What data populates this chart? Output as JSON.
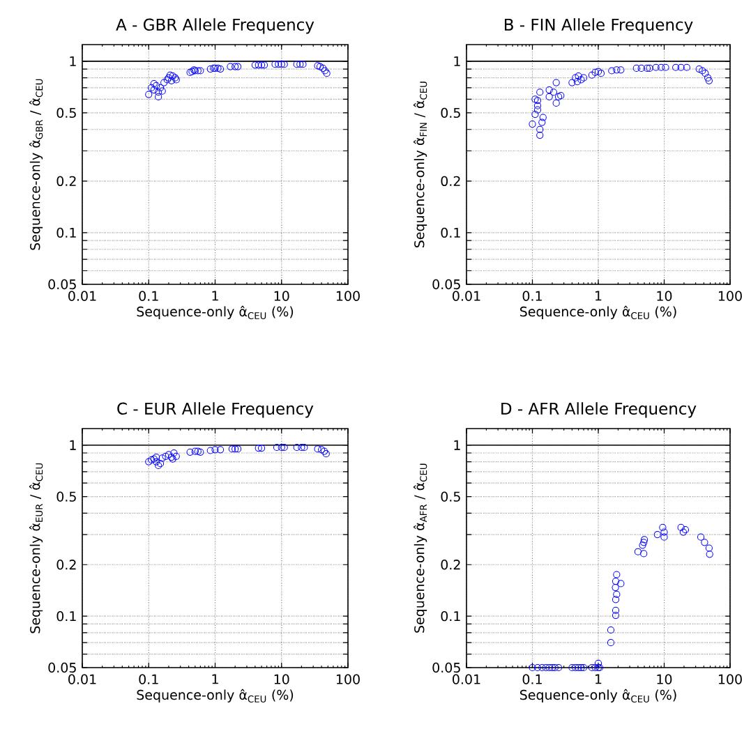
{
  "chart_data": [
    {
      "type": "scatter",
      "title": "A - GBR Allele Frequency",
      "xlabel": "Sequence-only α̂$_{CEU}$ (%)",
      "ylabel": "Sequence-only α̂$_{GBR}$ / α̂$_{CEU}$",
      "log": "xy",
      "grid": true,
      "marker": "circle",
      "xlim": [
        0.01,
        100
      ],
      "ylim": [
        0.05,
        1.25
      ],
      "xticks": [
        0.01,
        0.1,
        1,
        10,
        100
      ],
      "yticks": [
        0.05,
        {
          "value": 0.06,
          "label": null
        },
        {
          "value": 0.07,
          "label": null
        },
        {
          "value": 0.08,
          "label": null
        },
        {
          "value": 0.09,
          "label": null
        },
        0.1,
        0.2,
        {
          "value": 0.3,
          "label": null
        },
        {
          "value": 0.4,
          "label": null
        },
        0.5,
        {
          "value": 0.6,
          "label": null
        },
        {
          "value": 0.7,
          "label": null
        },
        {
          "value": 0.8,
          "label": null
        },
        {
          "value": 0.9,
          "label": null
        },
        1
      ],
      "ref_lines": [
        {
          "axis": "y",
          "value": 1,
          "color": "#000000"
        }
      ],
      "series": [
        {
          "color": "#0000ff",
          "x": [
            0.1,
            0.11,
            0.12,
            0.13,
            0.14,
            0.14,
            0.15,
            0.16,
            0.12,
            0.17,
            0.19,
            0.2,
            0.22,
            0.23,
            0.25,
            0.21,
            0.26,
            0.42,
            0.45,
            0.5,
            0.55,
            0.48,
            0.6,
            0.85,
            0.95,
            1.0,
            1.1,
            1.2,
            1.7,
            2.0,
            2.2,
            4,
            4.5,
            5,
            5.5,
            8,
            9,
            10,
            11,
            17,
            19,
            21,
            35,
            38,
            42,
            45,
            48
          ],
          "values": [
            0.64,
            0.7,
            0.68,
            0.72,
            0.62,
            0.66,
            0.7,
            0.67,
            0.74,
            0.75,
            0.78,
            0.8,
            0.77,
            0.82,
            0.8,
            0.83,
            0.78,
            0.86,
            0.87,
            0.88,
            0.88,
            0.89,
            0.88,
            0.9,
            0.91,
            0.91,
            0.91,
            0.9,
            0.93,
            0.93,
            0.93,
            0.95,
            0.95,
            0.95,
            0.95,
            0.96,
            0.96,
            0.96,
            0.96,
            0.96,
            0.96,
            0.96,
            0.94,
            0.93,
            0.91,
            0.88,
            0.85
          ]
        }
      ]
    },
    {
      "type": "scatter",
      "title": "B - FIN Allele Frequency",
      "xlabel": "Sequence-only α̂$_{CEU}$ (%)",
      "ylabel": "Sequence-only α̂$_{FIN}$ / α̂$_{CEU}$",
      "log": "xy",
      "grid": true,
      "marker": "circle",
      "xlim": [
        0.01,
        100
      ],
      "ylim": [
        0.05,
        1.25
      ],
      "xticks": [
        0.01,
        0.1,
        1,
        10,
        100
      ],
      "yticks": [
        0.05,
        {
          "value": 0.06,
          "label": null
        },
        {
          "value": 0.07,
          "label": null
        },
        {
          "value": 0.08,
          "label": null
        },
        {
          "value": 0.09,
          "label": null
        },
        0.1,
        0.2,
        {
          "value": 0.3,
          "label": null
        },
        {
          "value": 0.4,
          "label": null
        },
        0.5,
        {
          "value": 0.6,
          "label": null
        },
        {
          "value": 0.7,
          "label": null
        },
        {
          "value": 0.8,
          "label": null
        },
        {
          "value": 0.9,
          "label": null
        },
        1
      ],
      "ref_lines": [
        {
          "axis": "y",
          "value": 1,
          "color": "#000000"
        }
      ],
      "series": [
        {
          "color": "#0000ff",
          "x": [
            0.1,
            0.13,
            0.13,
            0.14,
            0.145,
            0.11,
            0.12,
            0.12,
            0.11,
            0.13,
            0.12,
            0.18,
            0.23,
            0.23,
            0.27,
            0.21,
            0.25,
            0.18,
            0.4,
            0.45,
            0.5,
            0.55,
            0.6,
            0.48,
            0.8,
            0.9,
            1.0,
            1.1,
            1.6,
            1.9,
            2.2,
            3.8,
            4.5,
            5.5,
            6,
            7.5,
            9,
            10.5,
            15,
            18,
            22,
            34,
            38,
            42,
            46,
            48
          ],
          "values": [
            0.43,
            0.37,
            0.4,
            0.44,
            0.47,
            0.49,
            0.52,
            0.55,
            0.6,
            0.66,
            0.59,
            0.68,
            0.75,
            0.57,
            0.63,
            0.66,
            0.62,
            0.62,
            0.75,
            0.8,
            0.82,
            0.78,
            0.8,
            0.76,
            0.83,
            0.86,
            0.87,
            0.85,
            0.88,
            0.89,
            0.89,
            0.91,
            0.91,
            0.91,
            0.91,
            0.92,
            0.92,
            0.92,
            0.92,
            0.92,
            0.92,
            0.9,
            0.88,
            0.85,
            0.8,
            0.77
          ]
        }
      ]
    },
    {
      "type": "scatter",
      "title": "C - EUR Allele Frequency",
      "xlabel": "Sequence-only α̂$_{CEU}$ (%)",
      "ylabel": "Sequence-only α̂$_{EUR}$ / α̂$_{CEU}$",
      "log": "xy",
      "grid": true,
      "marker": "circle",
      "xlim": [
        0.01,
        100
      ],
      "ylim": [
        0.05,
        1.25
      ],
      "xticks": [
        0.01,
        0.1,
        1,
        10,
        100
      ],
      "yticks": [
        0.05,
        {
          "value": 0.06,
          "label": null
        },
        {
          "value": 0.07,
          "label": null
        },
        {
          "value": 0.08,
          "label": null
        },
        {
          "value": 0.09,
          "label": null
        },
        0.1,
        0.2,
        {
          "value": 0.3,
          "label": null
        },
        {
          "value": 0.4,
          "label": null
        },
        0.5,
        {
          "value": 0.6,
          "label": null
        },
        {
          "value": 0.7,
          "label": null
        },
        {
          "value": 0.8,
          "label": null
        },
        {
          "value": 0.9,
          "label": null
        },
        1
      ],
      "ref_lines": [
        {
          "axis": "y",
          "value": 1,
          "color": "#000000"
        }
      ],
      "series": [
        {
          "color": "#0000ff",
          "x": [
            0.1,
            0.11,
            0.12,
            0.13,
            0.14,
            0.15,
            0.13,
            0.16,
            0.18,
            0.2,
            0.22,
            0.24,
            0.26,
            0.23,
            0.42,
            0.5,
            0.55,
            0.6,
            0.85,
            1.0,
            1.2,
            1.8,
            2.0,
            2.2,
            4.5,
            5,
            8.5,
            10,
            11,
            17,
            20,
            22,
            35,
            40,
            44,
            47
          ],
          "values": [
            0.8,
            0.82,
            0.83,
            0.85,
            0.76,
            0.78,
            0.8,
            0.84,
            0.86,
            0.88,
            0.85,
            0.9,
            0.86,
            0.83,
            0.91,
            0.92,
            0.92,
            0.91,
            0.93,
            0.94,
            0.94,
            0.95,
            0.95,
            0.95,
            0.96,
            0.96,
            0.97,
            0.97,
            0.97,
            0.97,
            0.97,
            0.97,
            0.95,
            0.94,
            0.92,
            0.89
          ]
        }
      ]
    },
    {
      "type": "scatter",
      "title": "D - AFR Allele Frequency",
      "xlabel": "Sequence-only α̂$_{CEU}$ (%)",
      "ylabel": "Sequence-only α̂$_{AFR}$ / α̂$_{CEU}$",
      "log": "xy",
      "grid": true,
      "marker": "circle",
      "xlim": [
        0.01,
        100
      ],
      "ylim": [
        0.05,
        1.25
      ],
      "xticks": [
        0.01,
        0.1,
        1,
        10,
        100
      ],
      "yticks": [
        0.05,
        {
          "value": 0.06,
          "label": null
        },
        {
          "value": 0.07,
          "label": null
        },
        {
          "value": 0.08,
          "label": null
        },
        {
          "value": 0.09,
          "label": null
        },
        0.1,
        0.2,
        {
          "value": 0.3,
          "label": null
        },
        {
          "value": 0.4,
          "label": null
        },
        0.5,
        {
          "value": 0.6,
          "label": null
        },
        {
          "value": 0.7,
          "label": null
        },
        {
          "value": 0.8,
          "label": null
        },
        {
          "value": 0.9,
          "label": null
        },
        1
      ],
      "ref_lines": [
        {
          "axis": "y",
          "value": 1,
          "color": "#000000"
        }
      ],
      "series": [
        {
          "color": "#0000ff",
          "x": [
            0.1,
            0.12,
            0.14,
            0.16,
            0.18,
            0.2,
            0.22,
            0.25,
            0.4,
            0.45,
            0.5,
            0.55,
            0.6,
            0.8,
            0.9,
            1.0,
            1.05,
            1.0,
            1.55,
            1.55,
            1.84,
            1.84,
            1.9,
            1.84,
            2.2,
            1.84,
            1.82,
            1.9,
            4.0,
            4.9,
            4.9,
            4.7,
            5.0,
            7.9,
            10,
            10,
            9.5,
            19.5,
            18,
            21,
            36,
            41,
            48,
            49
          ],
          "values": [
            0.05,
            0.05,
            0.05,
            0.05,
            0.05,
            0.05,
            0.05,
            0.05,
            0.05,
            0.05,
            0.05,
            0.05,
            0.05,
            0.05,
            0.05,
            0.05,
            0.05,
            0.053,
            0.083,
            0.07,
            0.101,
            0.108,
            0.175,
            0.16,
            0.155,
            0.125,
            0.147,
            0.134,
            0.238,
            0.232,
            0.27,
            0.26,
            0.28,
            0.3,
            0.31,
            0.29,
            0.33,
            0.31,
            0.33,
            0.32,
            0.29,
            0.27,
            0.25,
            0.23
          ]
        }
      ]
    }
  ]
}
